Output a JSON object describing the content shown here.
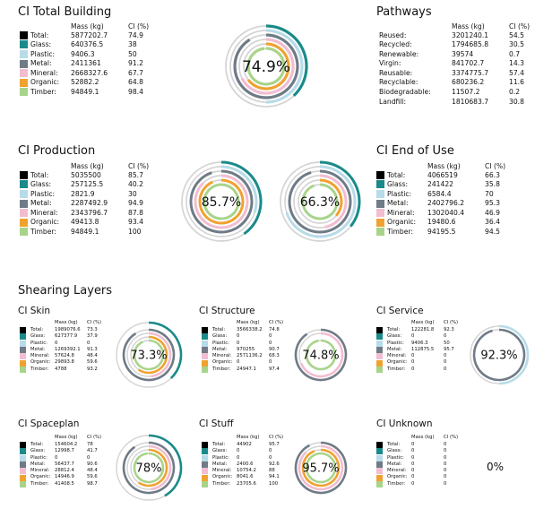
{
  "headers": {
    "mass": "Mass (kg)",
    "ci": "CI (%)"
  },
  "colors": {
    "Total": "#000000",
    "Glass": "#1b8a8a",
    "Plastic": "#b7dbe9",
    "Metal": "#6f7b87",
    "Mineral": "#f2bdd0",
    "Organic": "#f0a230",
    "Timber": "#a8d48a"
  },
  "sections": {
    "total": {
      "title": "CI Total Building",
      "percent": "74.9%",
      "rows": [
        {
          "label": "Total:",
          "mass": "5877202.7",
          "ci": "74.9",
          "key": "Total"
        },
        {
          "label": "Glass:",
          "mass": "640376.5",
          "ci": "38",
          "key": "Glass"
        },
        {
          "label": "Plastic:",
          "mass": "9406.3",
          "ci": "50",
          "key": "Plastic"
        },
        {
          "label": "Metal:",
          "mass": "2411361",
          "ci": "91.2",
          "key": "Metal"
        },
        {
          "label": "Mineral:",
          "mass": "2668327.6",
          "ci": "67.7",
          "key": "Mineral"
        },
        {
          "label": "Organic:",
          "mass": "52882.2",
          "ci": "64.8",
          "key": "Organic"
        },
        {
          "label": "Timber:",
          "mass": "94849.1",
          "ci": "98.4",
          "key": "Timber"
        }
      ]
    },
    "pathways": {
      "title": "Pathways",
      "rows": [
        {
          "label": "Reused:",
          "mass": "3201240.1",
          "ci": "54.5"
        },
        {
          "label": "Recycled:",
          "mass": "1794685.8",
          "ci": "30.5"
        },
        {
          "label": "Renewable:",
          "mass": "39574",
          "ci": "0.7"
        },
        {
          "label": "Virgin:",
          "mass": "841702.7",
          "ci": "14.3"
        },
        {
          "label": "Reusable:",
          "mass": "3374775.7",
          "ci": "57.4"
        },
        {
          "label": "Recyclable:",
          "mass": "680236.2",
          "ci": "11.6"
        },
        {
          "label": "Biodegradable:",
          "mass": "11507.2",
          "ci": "0.2"
        },
        {
          "label": "Landfill:",
          "mass": "1810683.7",
          "ci": "30.8"
        }
      ]
    },
    "production": {
      "title": "CI Production",
      "percent": "85.7%",
      "rows": [
        {
          "label": "Total:",
          "mass": "5035500",
          "ci": "85.7",
          "key": "Total"
        },
        {
          "label": "Glass:",
          "mass": "257125.5",
          "ci": "40.2",
          "key": "Glass"
        },
        {
          "label": "Plastic:",
          "mass": "2821.9",
          "ci": "30",
          "key": "Plastic"
        },
        {
          "label": "Metal:",
          "mass": "2287492.9",
          "ci": "94.9",
          "key": "Metal"
        },
        {
          "label": "Mineral:",
          "mass": "2343796.7",
          "ci": "87.8",
          "key": "Mineral"
        },
        {
          "label": "Organic:",
          "mass": "49413.8",
          "ci": "93.4",
          "key": "Organic"
        },
        {
          "label": "Timber:",
          "mass": "94849.1",
          "ci": "100",
          "key": "Timber"
        }
      ]
    },
    "endofuse": {
      "title": "CI End of Use",
      "percent": "66.3%",
      "rows": [
        {
          "label": "Total:",
          "mass": "4066519",
          "ci": "66.3",
          "key": "Total"
        },
        {
          "label": "Glass:",
          "mass": "241422",
          "ci": "35.8",
          "key": "Glass"
        },
        {
          "label": "Plastic:",
          "mass": "6584.4",
          "ci": "70",
          "key": "Plastic"
        },
        {
          "label": "Metal:",
          "mass": "2402796.2",
          "ci": "95.3",
          "key": "Metal"
        },
        {
          "label": "Mineral:",
          "mass": "1302040.4",
          "ci": "46.9",
          "key": "Mineral"
        },
        {
          "label": "Organic:",
          "mass": "19480.6",
          "ci": "36.4",
          "key": "Organic"
        },
        {
          "label": "Timber:",
          "mass": "94195.5",
          "ci": "94.5",
          "key": "Timber"
        }
      ]
    },
    "shearing_title": "Shearing Layers",
    "skin": {
      "title": "CI Skin",
      "percent": "73.3%",
      "rows": [
        {
          "label": "Total:",
          "mass": "1989076.6",
          "ci": "73.3",
          "key": "Total"
        },
        {
          "label": "Glass:",
          "mass": "627377.9",
          "ci": "37.9",
          "key": "Glass"
        },
        {
          "label": "Plastic:",
          "mass": "0",
          "ci": "0",
          "key": "Plastic"
        },
        {
          "label": "Metal:",
          "mass": "1269392.1",
          "ci": "91.3",
          "key": "Metal"
        },
        {
          "label": "Mineral:",
          "mass": "57624.8",
          "ci": "48.4",
          "key": "Mineral"
        },
        {
          "label": "Organic:",
          "mass": "29893.8",
          "ci": "59.6",
          "key": "Organic"
        },
        {
          "label": "Timber:",
          "mass": "4788",
          "ci": "93.2",
          "key": "Timber"
        }
      ]
    },
    "structure": {
      "title": "CI Structure",
      "percent": "74.8%",
      "rows": [
        {
          "label": "Total:",
          "mass": "3566338.2",
          "ci": "74.8",
          "key": "Total"
        },
        {
          "label": "Glass:",
          "mass": "0",
          "ci": "0",
          "key": "Glass"
        },
        {
          "label": "Plastic:",
          "mass": "0",
          "ci": "0",
          "key": "Plastic"
        },
        {
          "label": "Metal:",
          "mass": "970255",
          "ci": "90.7",
          "key": "Metal"
        },
        {
          "label": "Mineral:",
          "mass": "2571136.2",
          "ci": "68.3",
          "key": "Mineral"
        },
        {
          "label": "Organic:",
          "mass": "0",
          "ci": "0",
          "key": "Organic"
        },
        {
          "label": "Timber:",
          "mass": "24947.1",
          "ci": "97.4",
          "key": "Timber"
        }
      ]
    },
    "service": {
      "title": "CI Service",
      "percent": "92.3%",
      "rows": [
        {
          "label": "Total:",
          "mass": "122281.8",
          "ci": "92.3",
          "key": "Total"
        },
        {
          "label": "Glass:",
          "mass": "0",
          "ci": "0",
          "key": "Glass"
        },
        {
          "label": "Plastic:",
          "mass": "9406.3",
          "ci": "50",
          "key": "Plastic"
        },
        {
          "label": "Metal:",
          "mass": "112875.5",
          "ci": "95.7",
          "key": "Metal"
        },
        {
          "label": "Mineral:",
          "mass": "0",
          "ci": "0",
          "key": "Mineral"
        },
        {
          "label": "Organic:",
          "mass": "0",
          "ci": "0",
          "key": "Organic"
        },
        {
          "label": "Timber:",
          "mass": "0",
          "ci": "0",
          "key": "Timber"
        }
      ]
    },
    "spaceplan": {
      "title": "CI Spaceplan",
      "percent": "78%",
      "rows": [
        {
          "label": "Total:",
          "mass": "154604.2",
          "ci": "78",
          "key": "Total"
        },
        {
          "label": "Glass:",
          "mass": "12998.7",
          "ci": "41.7",
          "key": "Glass"
        },
        {
          "label": "Plastic:",
          "mass": "0",
          "ci": "0",
          "key": "Plastic"
        },
        {
          "label": "Metal:",
          "mass": "56437.7",
          "ci": "90.6",
          "key": "Metal"
        },
        {
          "label": "Mineral:",
          "mass": "28812.4",
          "ci": "48.4",
          "key": "Mineral"
        },
        {
          "label": "Organic:",
          "mass": "14946.9",
          "ci": "59.6",
          "key": "Organic"
        },
        {
          "label": "Timber:",
          "mass": "41408.5",
          "ci": "98.7",
          "key": "Timber"
        }
      ]
    },
    "stuff": {
      "title": "CI Stuff",
      "percent": "95.7%",
      "rows": [
        {
          "label": "Total:",
          "mass": "44902",
          "ci": "95.7",
          "key": "Total"
        },
        {
          "label": "Glass:",
          "mass": "0",
          "ci": "0",
          "key": "Glass"
        },
        {
          "label": "Plastic:",
          "mass": "0",
          "ci": "0",
          "key": "Plastic"
        },
        {
          "label": "Metal:",
          "mass": "2400.6",
          "ci": "92.6",
          "key": "Metal"
        },
        {
          "label": "Mineral:",
          "mass": "10754.2",
          "ci": "88",
          "key": "Mineral"
        },
        {
          "label": "Organic:",
          "mass": "8041.6",
          "ci": "94.1",
          "key": "Organic"
        },
        {
          "label": "Timber:",
          "mass": "23705.6",
          "ci": "100",
          "key": "Timber"
        }
      ]
    },
    "unknown": {
      "title": "CI Unknown",
      "percent": "0%",
      "rows": [
        {
          "label": "Total:",
          "mass": "0",
          "ci": "0",
          "key": "Total"
        },
        {
          "label": "Glass:",
          "mass": "0",
          "ci": "0",
          "key": "Glass"
        },
        {
          "label": "Plastic:",
          "mass": "0",
          "ci": "0",
          "key": "Plastic"
        },
        {
          "label": "Metal:",
          "mass": "0",
          "ci": "0",
          "key": "Metal"
        },
        {
          "label": "Mineral:",
          "mass": "0",
          "ci": "0",
          "key": "Mineral"
        },
        {
          "label": "Organic:",
          "mass": "0",
          "ci": "0",
          "key": "Organic"
        },
        {
          "label": "Timber:",
          "mass": "0",
          "ci": "0",
          "key": "Timber"
        }
      ]
    }
  }
}
